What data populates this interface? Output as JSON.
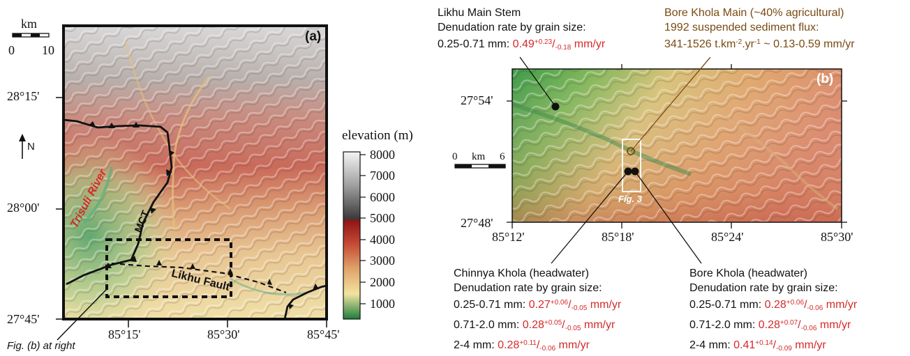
{
  "panel_a": {
    "label": "(a)",
    "scale": {
      "unit": "km",
      "min": "0",
      "max": "10"
    },
    "north": "N",
    "lat_ticks": [
      "28°15'",
      "28°00'",
      "27°45'"
    ],
    "lon_ticks": [
      "85°15'",
      "85°30'",
      "85°45'"
    ],
    "labels": {
      "river": "Trisuli River",
      "mct": "MCT",
      "fault": "Likhu Fault"
    },
    "callout": "Fig. (b) at right"
  },
  "colorbar": {
    "title": "elevation (m)",
    "ticks": [
      "8000",
      "7000",
      "6000",
      "5000",
      "4000",
      "3000",
      "2000",
      "1000"
    ],
    "stops": [
      "#f2f2f2",
      "#9a9a9a",
      "#3a3a3a",
      "#8e1515",
      "#cc5a3c",
      "#e0b06a",
      "#f4e7a8",
      "#18803d"
    ]
  },
  "panel_b": {
    "label": "(b)",
    "scale": {
      "min": "0",
      "unit": "km",
      "max": "6"
    },
    "lat_ticks": [
      "27°54'",
      "27°48'"
    ],
    "lon_ticks": [
      "85°12'",
      "85°18'",
      "85°24'",
      "85°30'"
    ],
    "fig3": "Fig. 3"
  },
  "annotations": {
    "likhu": {
      "title": "Likhu Main Stem",
      "subtitle": "Denudation rate by grain size:",
      "rows": [
        {
          "size": "0.25-0.71 mm:",
          "value": "0.49",
          "plus": "+0.23",
          "minus": "-0.18",
          "unit": "mm/yr"
        }
      ]
    },
    "bore_main": {
      "line1": "Bore Khola Main (~40% agricultural)",
      "line2": "1992 suspended sediment flux:",
      "line3_a": "341-1526 t.km",
      "line3_sup1": "-2",
      "line3_b": ".yr",
      "line3_sup2": "-1",
      "line3_c": " ~ 0.13-0.59 mm/yr"
    },
    "chinnya": {
      "title": "Chinnya Khola (headwater)",
      "subtitle": "Denudation rate by grain size:",
      "rows": [
        {
          "size": "0.25-0.71 mm:",
          "value": "0.27",
          "plus": "+0.06",
          "minus": "-0.05",
          "unit": "mm/yr"
        },
        {
          "size": "0.71-2.0 mm:",
          "value": "0.28",
          "plus": "+0.05",
          "minus": "-0.05",
          "unit": "mm/yr"
        },
        {
          "size": "2-4 mm:",
          "value": "0.28",
          "plus": "+0.11",
          "minus": "-0.06",
          "unit": "mm/yr"
        }
      ]
    },
    "bore_head": {
      "title": "Bore Khola (headwater)",
      "subtitle": "Denudation rate by grain size:",
      "rows": [
        {
          "size": "0.25-0.71 mm:",
          "value": "0.28",
          "plus": "+0.06",
          "minus": "-0.06",
          "unit": "mm/yr"
        },
        {
          "size": "0.71-2.0 mm:",
          "value": "0.28",
          "plus": "+0.07",
          "minus": "-0.06",
          "unit": "mm/yr"
        },
        {
          "size": "2-4 mm:",
          "value": "0.41",
          "plus": "+0.14",
          "minus": "-0.09",
          "unit": "mm/yr"
        }
      ]
    }
  }
}
